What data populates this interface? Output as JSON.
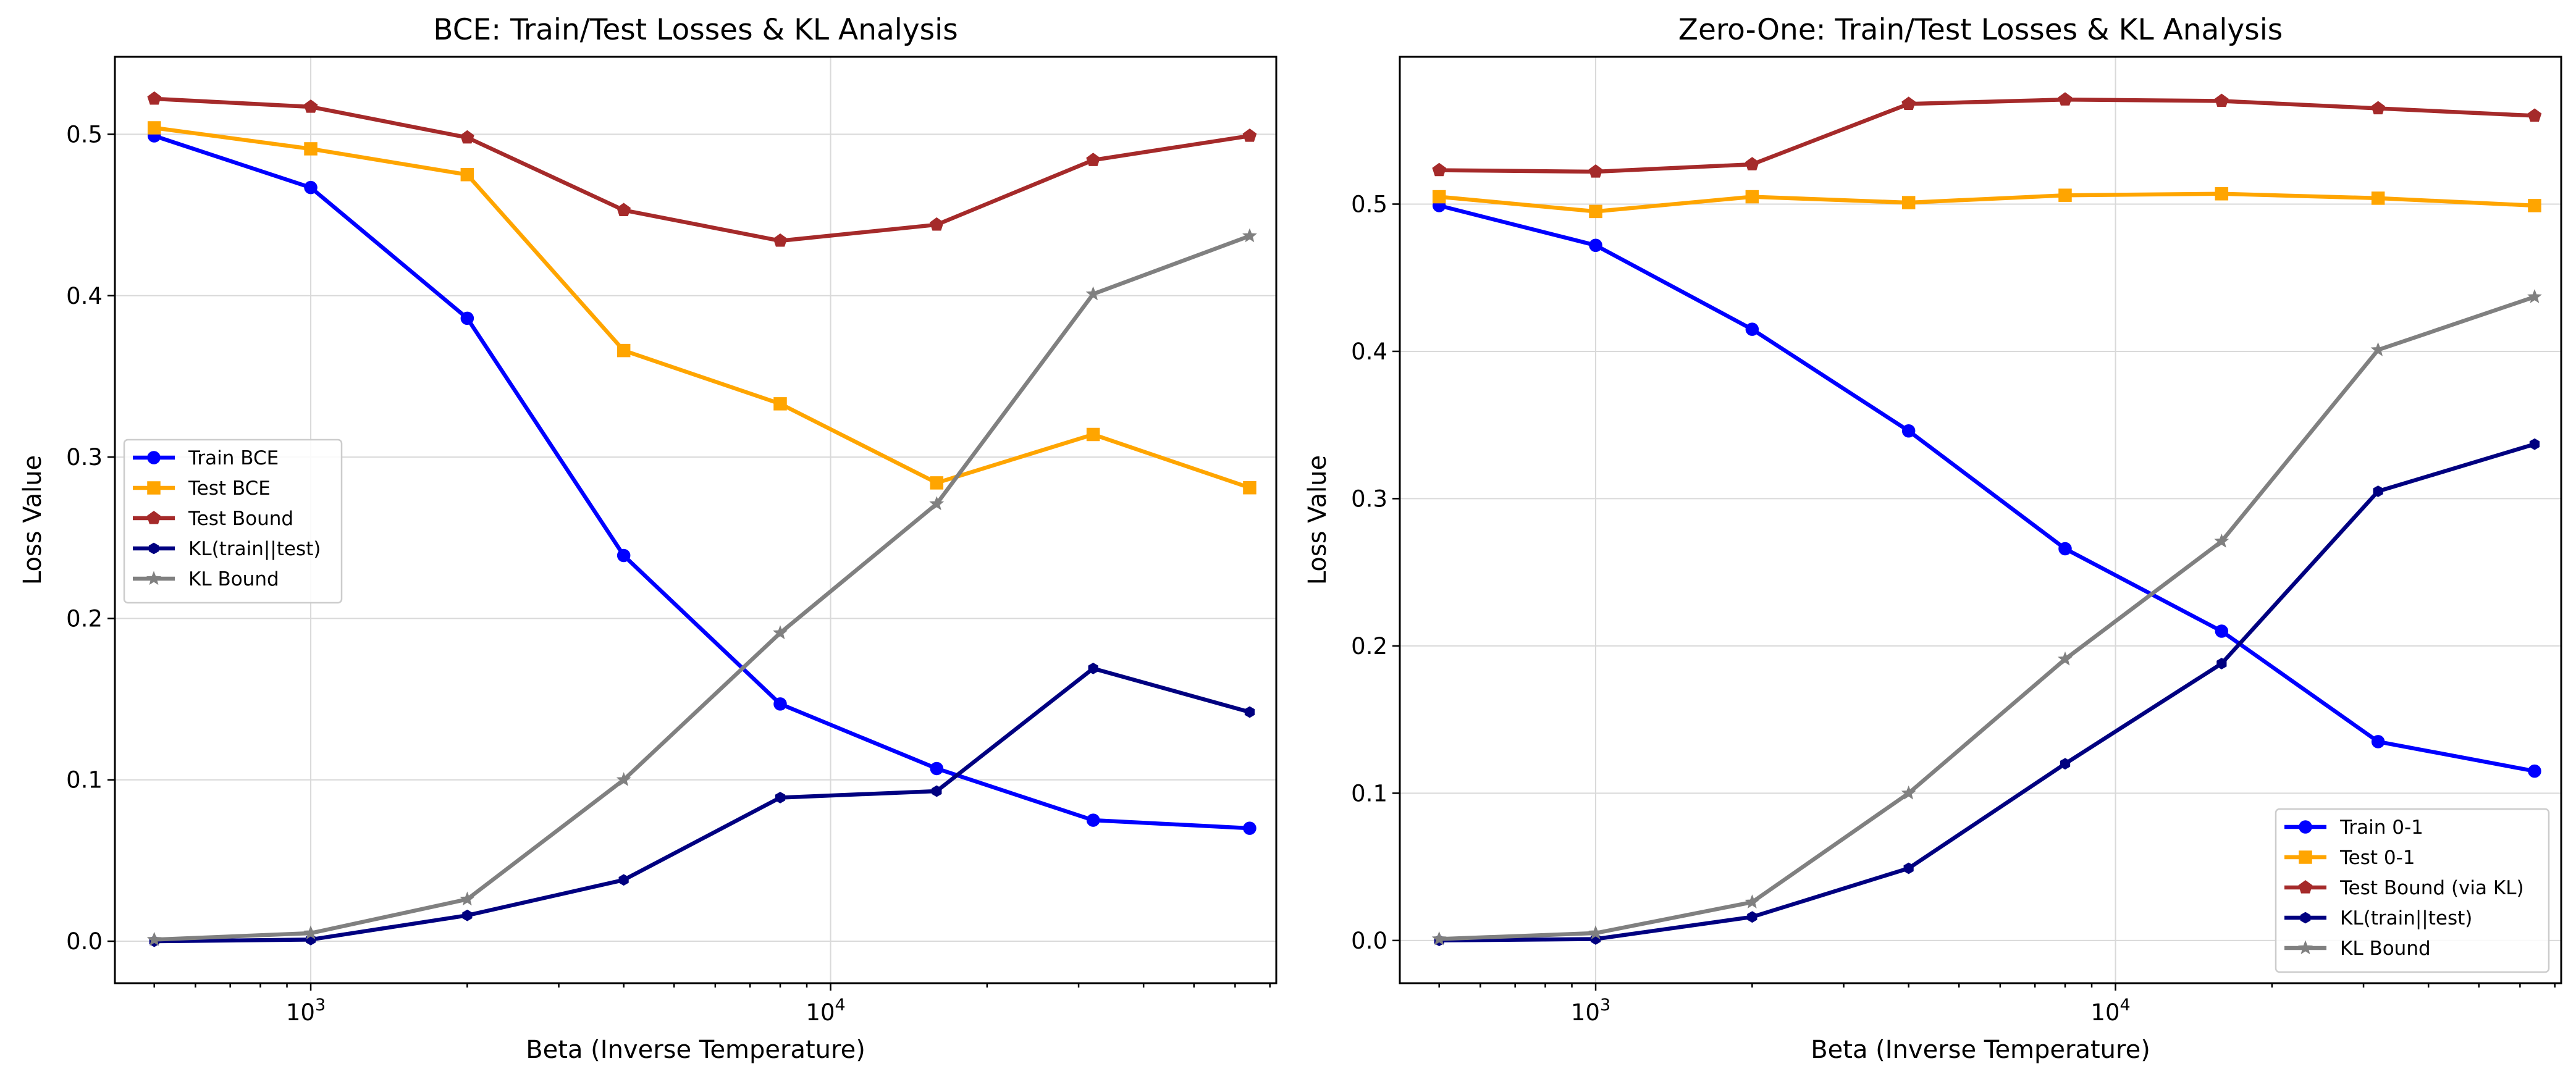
{
  "chart_data": [
    {
      "type": "line",
      "title": "BCE: Train/Test Losses & KL Analysis",
      "xlabel": "Beta (Inverse Temperature)",
      "ylabel": "Loss Value",
      "xscale": "log",
      "xlim": [
        420,
        72000
      ],
      "ylim": [
        -0.026,
        0.548
      ],
      "x_ticks": [
        {
          "value": 1000,
          "base": "10",
          "exp": "3"
        },
        {
          "value": 10000,
          "base": "10",
          "exp": "4"
        }
      ],
      "y_ticks": [
        0.0,
        0.1,
        0.2,
        0.3,
        0.4,
        0.5
      ],
      "y_tick_labels": [
        "0.0",
        "0.1",
        "0.2",
        "0.3",
        "0.4",
        "0.5"
      ],
      "grid": true,
      "legend_position": "center-left",
      "x": [
        500,
        1000,
        2000,
        4000,
        8000,
        16000,
        32000,
        64000
      ],
      "series": [
        {
          "name": "Train BCE",
          "color": "#0000ff",
          "marker": "circle",
          "values": [
            0.499,
            0.467,
            0.386,
            0.239,
            0.147,
            0.107,
            0.075,
            0.07
          ]
        },
        {
          "name": "Test BCE",
          "color": "#ffa500",
          "marker": "square",
          "values": [
            0.504,
            0.491,
            0.475,
            0.366,
            0.333,
            0.284,
            0.314,
            0.281
          ]
        },
        {
          "name": "Test Bound",
          "color": "#a52a2a",
          "marker": "pentagon",
          "values": [
            0.522,
            0.517,
            0.498,
            0.453,
            0.434,
            0.444,
            0.484,
            0.499
          ]
        },
        {
          "name": "KL(train||test)",
          "color": "#000080",
          "marker": "hexagon",
          "values": [
            0.0,
            0.001,
            0.016,
            0.038,
            0.089,
            0.093,
            0.169,
            0.142
          ]
        },
        {
          "name": "KL Bound",
          "color": "#808080",
          "marker": "star",
          "values": [
            0.001,
            0.005,
            0.026,
            0.1,
            0.191,
            0.271,
            0.401,
            0.437
          ]
        }
      ]
    },
    {
      "type": "line",
      "title": "Zero-One: Train/Test Losses & KL Analysis",
      "xlabel": "Beta (Inverse Temperature)",
      "ylabel": "Loss Value",
      "xscale": "log",
      "xlim": [
        420,
        72000
      ],
      "ylim": [
        -0.029,
        0.6
      ],
      "x_ticks": [
        {
          "value": 1000,
          "base": "10",
          "exp": "3"
        },
        {
          "value": 10000,
          "base": "10",
          "exp": "4"
        }
      ],
      "y_ticks": [
        0.0,
        0.1,
        0.2,
        0.3,
        0.4,
        0.5
      ],
      "y_tick_labels": [
        "0.0",
        "0.1",
        "0.2",
        "0.3",
        "0.4",
        "0.5"
      ],
      "grid": true,
      "legend_position": "lower-right",
      "x": [
        500,
        1000,
        2000,
        4000,
        8000,
        16000,
        32000,
        64000
      ],
      "series": [
        {
          "name": "Train 0-1",
          "color": "#0000ff",
          "marker": "circle",
          "values": [
            0.499,
            0.472,
            0.415,
            0.346,
            0.266,
            0.21,
            0.135,
            0.115
          ]
        },
        {
          "name": "Test 0-1",
          "color": "#ffa500",
          "marker": "square",
          "values": [
            0.505,
            0.495,
            0.505,
            0.501,
            0.506,
            0.507,
            0.504,
            0.499
          ]
        },
        {
          "name": "Test Bound (via KL)",
          "color": "#a52a2a",
          "marker": "pentagon",
          "values": [
            0.523,
            0.522,
            0.527,
            0.568,
            0.571,
            0.57,
            0.565,
            0.56
          ]
        },
        {
          "name": "KL(train||test)",
          "color": "#000080",
          "marker": "hexagon",
          "values": [
            0.0,
            0.001,
            0.016,
            0.049,
            0.12,
            0.188,
            0.305,
            0.337
          ]
        },
        {
          "name": "KL Bound",
          "color": "#808080",
          "marker": "star",
          "values": [
            0.001,
            0.005,
            0.026,
            0.1,
            0.191,
            0.271,
            0.401,
            0.437
          ]
        }
      ]
    }
  ]
}
